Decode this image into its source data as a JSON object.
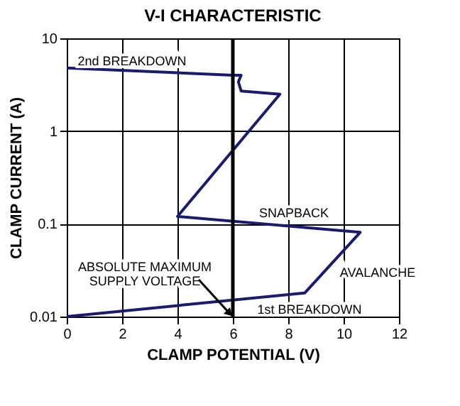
{
  "chart_data": {
    "type": "line",
    "title": "V-I CHARACTERISTIC",
    "xlabel": "CLAMP POTENTIAL (V)",
    "ylabel": "CLAMP CURRENT (A)",
    "x": [
      0,
      8.6,
      10.6,
      4.0,
      7.7,
      6.3,
      6.2,
      6.3,
      6.0,
      0
    ],
    "series": [
      {
        "color": "#1a1a6e",
        "values": [
          0.01,
          0.018,
          0.081,
          0.12,
          2.5,
          2.7,
          3.4,
          4.0,
          4.0,
          4.8
        ]
      }
    ],
    "xlim": [
      0,
      12
    ],
    "xticks": [
      0,
      2,
      4,
      6,
      8,
      10,
      12
    ],
    "ylim": [
      0.01,
      10
    ],
    "yticks": [
      0.01,
      0.1,
      1,
      10
    ],
    "log": "y",
    "grid": true,
    "marker": "none",
    "line_style": "solid",
    "ref_lines": [
      {
        "axis": "x",
        "value": 6,
        "label": "ABSOLUTE MAXIMUM\nSUPPLY VOLTAGE",
        "color": "#000000"
      }
    ],
    "annotations": [
      "2nd BREAKDOWN",
      "SNAPBACK",
      "AVALANCHE",
      "1st BREAKDOWN"
    ]
  }
}
